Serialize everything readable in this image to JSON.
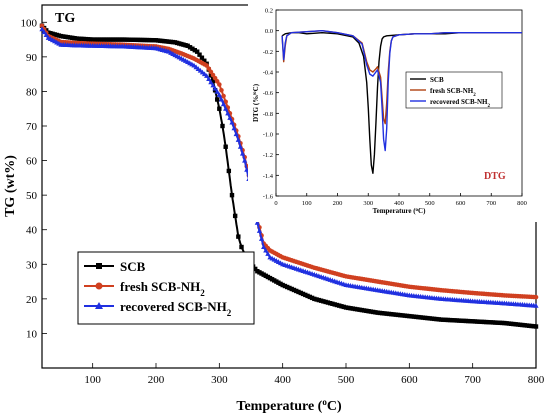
{
  "chart_data": [
    {
      "type": "line",
      "title": "TG",
      "xlabel": "Temperature (°C)",
      "ylabel": "TG (wt%)",
      "xlim": [
        20,
        800
      ],
      "ylim": [
        0,
        105
      ],
      "xticks": [
        100,
        200,
        300,
        400,
        500,
        600,
        700,
        800
      ],
      "yticks": [
        10,
        20,
        30,
        40,
        50,
        60,
        70,
        80,
        90,
        100
      ],
      "grid": false,
      "legend_position": "bottom-left",
      "series": [
        {
          "name": "SCB",
          "color": "#000000",
          "marker": "square",
          "x": [
            20,
            30,
            50,
            75,
            100,
            150,
            200,
            230,
            250,
            265,
            280,
            290,
            300,
            305,
            310,
            315,
            320,
            325,
            330,
            335,
            340,
            350,
            360,
            380,
            400,
            450,
            500,
            550,
            600,
            650,
            700,
            750,
            800
          ],
          "y": [
            99,
            97,
            96,
            95.3,
            95,
            95,
            94.8,
            94.2,
            93.2,
            91.5,
            88,
            83,
            75,
            70,
            64,
            57,
            50,
            44,
            38,
            35,
            33,
            30,
            28,
            26,
            24,
            20,
            17.5,
            16,
            15,
            14,
            13.5,
            13,
            12
          ]
        },
        {
          "name": "fresh SCB-NH2",
          "color": "#d04020",
          "marker": "circle",
          "x": [
            20,
            30,
            50,
            75,
            100,
            150,
            200,
            220,
            240,
            260,
            280,
            300,
            310,
            320,
            330,
            340,
            350,
            360,
            370,
            380,
            400,
            450,
            500,
            550,
            600,
            650,
            700,
            750,
            800
          ],
          "y": [
            99,
            96,
            94.3,
            94,
            93.8,
            93.5,
            93,
            92.3,
            91,
            89.5,
            87.5,
            82,
            77,
            72,
            67,
            61,
            53,
            43,
            36,
            34,
            32,
            29,
            26.5,
            25,
            23.5,
            22.5,
            21.7,
            21,
            20.5
          ]
        },
        {
          "name": "recovered SCB-NH2",
          "color": "#2030e0",
          "marker": "triangle",
          "x": [
            20,
            30,
            50,
            75,
            100,
            150,
            200,
            220,
            240,
            260,
            280,
            300,
            310,
            320,
            330,
            340,
            350,
            360,
            370,
            380,
            400,
            450,
            500,
            550,
            600,
            650,
            700,
            750,
            800
          ],
          "y": [
            98,
            95.5,
            93.5,
            93.3,
            93.2,
            93,
            92.5,
            91.5,
            89.5,
            87.5,
            84.5,
            79,
            75,
            71,
            66,
            60,
            52,
            42,
            35,
            32,
            30,
            27,
            24,
            22.5,
            21,
            20,
            19.3,
            18.7,
            18
          ]
        }
      ]
    },
    {
      "type": "line",
      "title": "DTG",
      "xlabel": "Temperature (°C)",
      "ylabel": "DTG (%/°C)",
      "xlim": [
        0,
        800
      ],
      "ylim": [
        -1.6,
        0.2
      ],
      "xticks": [
        0,
        100,
        200,
        300,
        400,
        500,
        600,
        700,
        800
      ],
      "yticks": [
        0.2,
        0.0,
        -0.2,
        -0.4,
        -0.6,
        -0.8,
        -1.0,
        -1.2,
        -1.4,
        -1.6
      ],
      "grid": false,
      "legend_position": "left-middle",
      "series": [
        {
          "name": "SCB",
          "color": "#000000",
          "x": [
            20,
            30,
            50,
            75,
            100,
            150,
            200,
            250,
            270,
            285,
            295,
            300,
            305,
            310,
            315,
            320,
            325,
            330,
            335,
            340,
            345,
            350,
            360,
            400,
            450,
            500,
            550,
            600,
            650,
            700,
            750,
            800
          ],
          "y": [
            -0.05,
            -0.03,
            -0.02,
            -0.02,
            -0.03,
            -0.02,
            -0.03,
            -0.06,
            -0.12,
            -0.25,
            -0.5,
            -0.75,
            -1.05,
            -1.3,
            -1.38,
            -1.2,
            -0.9,
            -0.55,
            -0.3,
            -0.15,
            -0.08,
            -0.06,
            -0.05,
            -0.04,
            -0.03,
            -0.03,
            -0.03,
            -0.02,
            -0.02,
            -0.02,
            -0.02,
            -0.02
          ]
        },
        {
          "name": "fresh SCB-NH2",
          "color": "#b04010",
          "x": [
            20,
            25,
            30,
            35,
            50,
            100,
            150,
            200,
            250,
            280,
            295,
            305,
            315,
            325,
            330,
            340,
            345,
            350,
            355,
            360,
            365,
            370,
            375,
            380,
            400,
            450,
            500,
            550,
            600,
            650,
            700,
            750,
            800
          ],
          "y": [
            -0.05,
            -0.3,
            -0.15,
            -0.05,
            -0.02,
            -0.01,
            0.0,
            -0.02,
            -0.05,
            -0.12,
            -0.3,
            -0.38,
            -0.4,
            -0.37,
            -0.35,
            -0.45,
            -0.65,
            -0.85,
            -0.9,
            -0.7,
            -0.4,
            -0.2,
            -0.1,
            -0.06,
            -0.04,
            -0.03,
            -0.03,
            -0.02,
            -0.02,
            -0.02,
            -0.02,
            -0.02,
            -0.02
          ]
        },
        {
          "name": "recovered SCB-NH2",
          "color": "#2030e0",
          "x": [
            20,
            25,
            30,
            35,
            50,
            100,
            150,
            200,
            250,
            280,
            295,
            305,
            315,
            325,
            330,
            340,
            345,
            350,
            355,
            360,
            365,
            370,
            375,
            380,
            400,
            450,
            500,
            550,
            600,
            650,
            700,
            750,
            800
          ],
          "y": [
            -0.05,
            -0.28,
            -0.12,
            -0.05,
            -0.02,
            -0.01,
            0.0,
            -0.02,
            -0.05,
            -0.13,
            -0.33,
            -0.42,
            -0.44,
            -0.4,
            -0.38,
            -0.5,
            -0.75,
            -1.05,
            -1.16,
            -0.95,
            -0.5,
            -0.22,
            -0.1,
            -0.06,
            -0.04,
            -0.03,
            -0.03,
            -0.02,
            -0.02,
            -0.02,
            -0.02,
            -0.02,
            -0.02
          ]
        }
      ]
    }
  ]
}
